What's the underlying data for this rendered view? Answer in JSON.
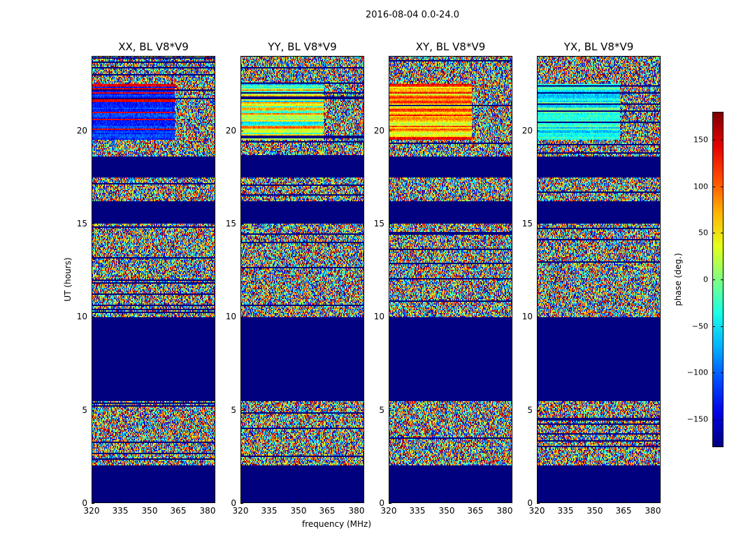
{
  "suptitle": "2016-08-04 0.0-24.0",
  "chart_data": {
    "type": "heatmap",
    "xlabel": "frequency (MHz)",
    "ylabel": "UT (hours)",
    "xlim": [
      320,
      384
    ],
    "ylim": [
      0,
      24
    ],
    "xticks": [
      320,
      335,
      350,
      365,
      380
    ],
    "yticks": [
      0,
      5,
      10,
      15,
      20
    ],
    "panels": [
      {
        "title": "XX, BL V8*V9",
        "pol": "XX"
      },
      {
        "title": "YY, BL V8*V9",
        "pol": "YY"
      },
      {
        "title": "XY, BL V8*V9",
        "pol": "XY"
      },
      {
        "title": "YX, BL V8*V9",
        "pol": "YX"
      }
    ],
    "colorbar": {
      "label": "phase (deg.)",
      "range": [
        -180,
        180
      ],
      "ticks": [
        -150,
        -100,
        -50,
        0,
        50,
        100,
        150
      ],
      "colormap": "jet",
      "mask_color": "#00007f"
    },
    "flagged_ut_hours": [
      [
        0,
        2.0
      ],
      [
        5.5,
        10.0
      ],
      [
        15.0,
        16.2
      ],
      [
        17.5,
        18.6
      ]
    ],
    "structured_band": {
      "ut_hours": [
        19.5,
        22.5
      ],
      "freq_split_mhz": 363
    }
  }
}
